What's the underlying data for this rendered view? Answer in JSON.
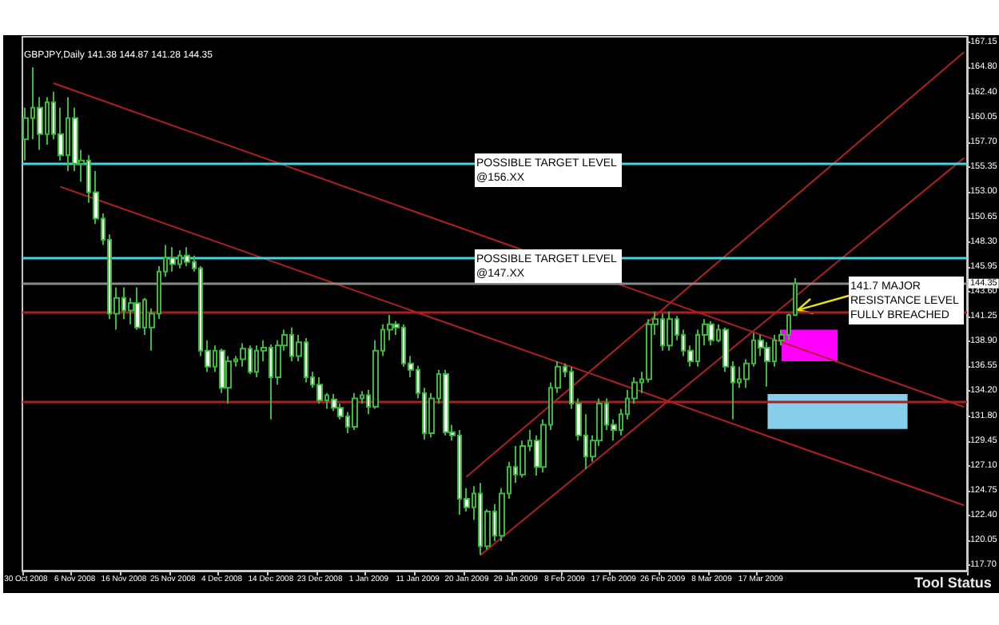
{
  "chart_data": {
    "type": "candlestick",
    "title": "GBPJPY,Daily 141.38 144.87 141.28 144.35",
    "color": "#3cb83c",
    "categories": [
      "30 Oct 2008",
      null,
      null,
      null,
      null,
      null,
      null,
      "6 Nov 2008",
      null,
      null,
      null,
      null,
      null,
      null,
      "16 Nov 2008",
      null,
      null,
      null,
      null,
      null,
      null,
      "25 Nov 2008",
      null,
      null,
      null,
      null,
      null,
      null,
      "4 Dec 2008",
      null,
      null,
      null,
      null,
      null,
      null,
      "14 Dec 2008",
      null,
      null,
      null,
      null,
      null,
      null,
      "23 Dec 2008",
      null,
      null,
      null,
      null,
      null,
      null,
      "1 Jan 2009",
      null,
      null,
      null,
      null,
      null,
      null,
      "11 Jan 2009",
      null,
      null,
      null,
      null,
      null,
      null,
      "20 Jan 2009",
      null,
      null,
      null,
      null,
      null,
      null,
      "29 Jan 2009",
      null,
      null,
      null,
      null,
      null,
      null,
      "8 Feb 2009",
      null,
      null,
      null,
      null,
      null,
      null,
      "17 Feb 2009",
      null,
      null,
      null,
      null,
      null,
      null,
      "26 Feb 2009",
      null,
      null,
      null,
      null,
      null,
      null,
      "8 Mar 2009",
      null,
      null,
      null,
      null,
      null,
      null,
      "17 Mar 2009",
      null,
      null,
      null,
      null,
      null,
      null,
      null,
      null,
      null,
      null,
      null,
      null,
      null,
      null,
      null,
      null,
      null,
      null,
      null,
      null,
      null,
      null,
      null,
      null,
      null,
      null,
      null,
      null,
      null
    ],
    "ohlc": [
      [
        158,
        161,
        156,
        160
      ],
      [
        160,
        164.8,
        158,
        161
      ],
      [
        161,
        162,
        157,
        158.5
      ],
      [
        158.5,
        162,
        157.5,
        161.5
      ],
      [
        161.5,
        162.5,
        158,
        158.5
      ],
      [
        158.5,
        161,
        156,
        156.5
      ],
      [
        156.5,
        162,
        155,
        160
      ],
      [
        160,
        161,
        155,
        155.7
      ],
      [
        155.7,
        157,
        154,
        156
      ],
      [
        156,
        156.5,
        152,
        153
      ],
      [
        153,
        155,
        150,
        150.5
      ],
      [
        150.5,
        151,
        148,
        148.5
      ],
      [
        148.5,
        149,
        141,
        141.5
      ],
      [
        141.5,
        144,
        140,
        143
      ],
      [
        143,
        144,
        141,
        141.8
      ],
      [
        141.8,
        143,
        140.5,
        142.5
      ],
      [
        142.5,
        144,
        140,
        140.2
      ],
      [
        140.2,
        143,
        139.5,
        142.8
      ],
      [
        140.2,
        142,
        138,
        141.5
      ],
      [
        141.5,
        146,
        141,
        145.5
      ],
      [
        145.5,
        148,
        145,
        146.8
      ],
      [
        146.8,
        147.8,
        145.5,
        146.2
      ],
      [
        146.2,
        147.5,
        145.8,
        147
      ],
      [
        147,
        147.8,
        146,
        146.4
      ],
      [
        146.4,
        147,
        145.5,
        145.8
      ],
      [
        145.8,
        146,
        137.5,
        138
      ],
      [
        138,
        139,
        136,
        136.5
      ],
      [
        136.5,
        138.5,
        136,
        138
      ],
      [
        138,
        138.2,
        134,
        134.5
      ],
      [
        134.5,
        137.5,
        133,
        137
      ],
      [
        137,
        137.5,
        136.5,
        137.2
      ],
      [
        137.2,
        138.7,
        136.5,
        138.2
      ],
      [
        138.2,
        138.5,
        135.8,
        136
      ],
      [
        136,
        138.5,
        135.5,
        138
      ],
      [
        138,
        139,
        137,
        138.3
      ],
      [
        138.3,
        138.6,
        131.5,
        135.5
      ],
      [
        135.5,
        139,
        134.8,
        138.5
      ],
      [
        138.5,
        140,
        138,
        139.5
      ],
      [
        139.5,
        140.2,
        137,
        137.5
      ],
      [
        137.5,
        139.5,
        137,
        138.8
      ],
      [
        138.8,
        139.2,
        135,
        135.5
      ],
      [
        135.5,
        136,
        134.5,
        134.8
      ],
      [
        134.8,
        135.5,
        133,
        133.3
      ],
      [
        133.3,
        134,
        132.5,
        133.8
      ],
      [
        133.4,
        133.9,
        132.3,
        132.6
      ],
      [
        132.6,
        133,
        131.5,
        131.8
      ],
      [
        131.8,
        132.2,
        130.2,
        130.8
      ],
      [
        130.8,
        134,
        130.5,
        133.5
      ],
      [
        133.5,
        134.2,
        133,
        133.8
      ],
      [
        133.8,
        134.3,
        132,
        132.7
      ],
      [
        132.7,
        139,
        132.5,
        138
      ],
      [
        138,
        140.5,
        137.5,
        140
      ],
      [
        140,
        141.4,
        139,
        140.5
      ],
      [
        140.5,
        140.8,
        139.5,
        140.2
      ],
      [
        140.2,
        140.5,
        136.5,
        136.8
      ],
      [
        136.8,
        137.5,
        135.5,
        136.2
      ],
      [
        136.2,
        136.6,
        133.5,
        134
      ],
      [
        134,
        134.5,
        129.6,
        130.2
      ],
      [
        130.2,
        134,
        129.8,
        133.5
      ],
      [
        133.5,
        136.2,
        133,
        135.8
      ],
      [
        135.8,
        136.2,
        130,
        130.3
      ],
      [
        130.3,
        131,
        129.5,
        130
      ],
      [
        130,
        130.5,
        122.5,
        124
      ],
      [
        124,
        125,
        122.8,
        123.2
      ],
      [
        123.2,
        125.2,
        122,
        124.5
      ],
      [
        124.5,
        125.5,
        118.7,
        119.5
      ],
      [
        119.5,
        123,
        119.2,
        122.8
      ],
      [
        122.8,
        123.5,
        120,
        120.5
      ],
      [
        120.5,
        125,
        120,
        124.5
      ],
      [
        124.5,
        127.5,
        124,
        127
      ],
      [
        127,
        129,
        125.5,
        126.3
      ],
      [
        126.3,
        129.5,
        126,
        129
      ],
      [
        129,
        130.5,
        128.5,
        129.5
      ],
      [
        129.5,
        130,
        126.2,
        127
      ],
      [
        127,
        131.5,
        126.5,
        131
      ],
      [
        131,
        135,
        130.5,
        134.5
      ],
      [
        134.5,
        137,
        134,
        136.5
      ],
      [
        136.5,
        136.8,
        135.5,
        136
      ],
      [
        136,
        136.5,
        132.5,
        133
      ],
      [
        133,
        133.5,
        129.5,
        130
      ],
      [
        130,
        132,
        126.8,
        128
      ],
      [
        128,
        130,
        127.5,
        129.5
      ],
      [
        129.5,
        133.5,
        129,
        133
      ],
      [
        133,
        133.5,
        130.5,
        131
      ],
      [
        131,
        131.5,
        129.5,
        130.5
      ],
      [
        130.5,
        132.5,
        130,
        132
      ],
      [
        132,
        134.3,
        131.5,
        133.5
      ],
      [
        133.5,
        135.5,
        133,
        135
      ],
      [
        135,
        136,
        134,
        135.3
      ],
      [
        135.3,
        141,
        135,
        140.5
      ],
      [
        140.5,
        141.7,
        139.5,
        141
      ],
      [
        141,
        141.5,
        138,
        138.5
      ],
      [
        138.5,
        141.7,
        138,
        141
      ],
      [
        141,
        141.3,
        139,
        139.5
      ],
      [
        139.5,
        140,
        137.5,
        138
      ],
      [
        138,
        138.5,
        136.5,
        137
      ],
      [
        137,
        140,
        136.5,
        139.5
      ],
      [
        139.5,
        141,
        138.5,
        140.5
      ],
      [
        140.5,
        140.8,
        138.5,
        139
      ],
      [
        139,
        140.5,
        138.8,
        140
      ],
      [
        140,
        140.2,
        136,
        136.5
      ],
      [
        136.5,
        137,
        131.5,
        135
      ],
      [
        135,
        136.5,
        134.5,
        135.3
      ],
      [
        135.3,
        137.2,
        134.5,
        136.8
      ],
      [
        136.8,
        139.7,
        136.5,
        139
      ],
      [
        139,
        139.5,
        137.5,
        138.3
      ],
      [
        138.3,
        138.8,
        134.6,
        137
      ],
      [
        137,
        139.5,
        136.5,
        139
      ],
      [
        139,
        140,
        138.5,
        139.5
      ],
      [
        139.5,
        141.5,
        139,
        141.38
      ],
      [
        141.38,
        144.87,
        141.28,
        144.35
      ],
      null,
      null,
      null,
      null,
      null,
      null,
      null,
      null,
      null,
      null,
      null,
      null,
      null,
      null,
      null,
      null,
      null,
      null,
      null,
      null,
      null,
      null,
      null,
      null
    ],
    "series": [
      {
        "type": "line",
        "color": "#b02020",
        "values": [
          null,
          null,
          null,
          null,
          163.3,
          null,
          null,
          null,
          null,
          null,
          null,
          null,
          null,
          null,
          null,
          null,
          null,
          null,
          null,
          null,
          null,
          null,
          null,
          null,
          null,
          null,
          null,
          null,
          null,
          null,
          null,
          null,
          null,
          null,
          null,
          null,
          null,
          null,
          null,
          null,
          null,
          null,
          null,
          null,
          null,
          null,
          null,
          null,
          null,
          null,
          null,
          null,
          null,
          null,
          null,
          null,
          null,
          null,
          null,
          null,
          null,
          null,
          null,
          null,
          null,
          null,
          null,
          null,
          null,
          null,
          null,
          null,
          null,
          null,
          null,
          null,
          null,
          null,
          null,
          null,
          null,
          null,
          null,
          null,
          null,
          null,
          null,
          null,
          null,
          null,
          null,
          null,
          null,
          null,
          null,
          null,
          null,
          null,
          null,
          null,
          null,
          null,
          null,
          null,
          null,
          null,
          null,
          null,
          null,
          null,
          null,
          null,
          null,
          null,
          null,
          null,
          null,
          null,
          null,
          null,
          null,
          null,
          null,
          null,
          null,
          null,
          null,
          null,
          null,
          null,
          null,
          null,
          null,
          null,
          132.7
        ]
      },
      {
        "type": "line",
        "color": "#b02020",
        "values": [
          null,
          null,
          null,
          null,
          null,
          153.5,
          null,
          null,
          null,
          null,
          null,
          null,
          null,
          null,
          null,
          null,
          null,
          null,
          null,
          null,
          null,
          null,
          null,
          null,
          null,
          null,
          null,
          null,
          null,
          null,
          null,
          null,
          null,
          null,
          null,
          null,
          null,
          null,
          null,
          null,
          null,
          null,
          null,
          null,
          null,
          null,
          null,
          null,
          null,
          null,
          null,
          null,
          null,
          null,
          null,
          null,
          null,
          null,
          null,
          null,
          null,
          null,
          null,
          null,
          null,
          null,
          null,
          null,
          null,
          null,
          null,
          null,
          null,
          null,
          null,
          null,
          null,
          null,
          null,
          null,
          null,
          null,
          null,
          null,
          null,
          null,
          null,
          null,
          null,
          null,
          null,
          null,
          null,
          null,
          null,
          null,
          null,
          null,
          null,
          null,
          null,
          null,
          null,
          null,
          null,
          null,
          null,
          null,
          null,
          null,
          null,
          null,
          null,
          null,
          null,
          null,
          null,
          null,
          null,
          null,
          null,
          null,
          null,
          null,
          null,
          null,
          null,
          null,
          null,
          null,
          null,
          null,
          null,
          null,
          123.4
        ]
      },
      {
        "type": "line",
        "color": "#b02020",
        "values": [
          null,
          null,
          null,
          null,
          null,
          null,
          null,
          null,
          null,
          null,
          null,
          null,
          null,
          null,
          null,
          null,
          null,
          null,
          null,
          null,
          null,
          null,
          null,
          null,
          null,
          null,
          null,
          null,
          null,
          null,
          null,
          null,
          null,
          null,
          null,
          null,
          null,
          null,
          null,
          null,
          null,
          null,
          null,
          null,
          null,
          null,
          null,
          null,
          null,
          null,
          null,
          null,
          null,
          null,
          null,
          null,
          null,
          null,
          null,
          null,
          null,
          null,
          null,
          null,
          null,
          118.7,
          null,
          null,
          null,
          null,
          null,
          null,
          null,
          null,
          null,
          null,
          null,
          null,
          null,
          null,
          null,
          null,
          null,
          null,
          null,
          null,
          null,
          null,
          null,
          null,
          null,
          null,
          null,
          null,
          null,
          null,
          null,
          null,
          null,
          null,
          null,
          null,
          null,
          null,
          null,
          null,
          null,
          null,
          null,
          null,
          null,
          null,
          null,
          null,
          null,
          null,
          null,
          null,
          null,
          null,
          null,
          null,
          null,
          null,
          null,
          null,
          null,
          null,
          null,
          null,
          null,
          null,
          null,
          null,
          156.2
        ]
      },
      {
        "type": "line",
        "color": "#b02020",
        "values": [
          null,
          null,
          null,
          null,
          null,
          null,
          null,
          null,
          null,
          null,
          null,
          null,
          null,
          null,
          null,
          null,
          null,
          null,
          null,
          null,
          null,
          null,
          null,
          null,
          null,
          null,
          null,
          null,
          null,
          null,
          null,
          null,
          null,
          null,
          null,
          null,
          null,
          null,
          null,
          null,
          null,
          null,
          null,
          null,
          null,
          null,
          null,
          null,
          null,
          null,
          null,
          null,
          null,
          null,
          null,
          null,
          null,
          null,
          null,
          null,
          null,
          null,
          null,
          126.1,
          null,
          null,
          null,
          null,
          null,
          null,
          null,
          null,
          null,
          null,
          null,
          null,
          null,
          null,
          null,
          null,
          null,
          null,
          null,
          null,
          null,
          null,
          null,
          null,
          null,
          null,
          null,
          null,
          null,
          null,
          null,
          null,
          null,
          null,
          null,
          null,
          null,
          null,
          null,
          null,
          null,
          null,
          null,
          null,
          null,
          null,
          null,
          null,
          null,
          null,
          null,
          null,
          null,
          null,
          null,
          null,
          null,
          null,
          null,
          null,
          null,
          null,
          null,
          null,
          null,
          null,
          null,
          null,
          null,
          null,
          166.2
        ]
      }
    ],
    "ylim": [
      117.2,
      167.7
    ],
    "yticks": [
      {
        "value": 117.7,
        "label": "117.70"
      },
      120.05,
      {
        "value": 122.4,
        "label": "122.40"
      },
      124.75,
      {
        "value": 127.1,
        "label": "127.10"
      },
      129.45,
      {
        "value": 131.8,
        "label": "131.80"
      },
      {
        "value": 134.2,
        "label": "134.20"
      },
      {
        "value": 136.55,
        "label": "136.55"
      },
      {
        "value": 138.9,
        "label": "138.90"
      },
      141.25,
      {
        "value": 143.6,
        "label": "143.60"
      },
      145.95,
      {
        "value": 148.3,
        "label": "148.30"
      },
      150.65,
      {
        "value": 153,
        "label": "153.00"
      },
      155.35,
      {
        "value": 157.7,
        "label": "157.70"
      },
      160.05,
      {
        "value": 162.4,
        "label": "162.40"
      },
      {
        "value": 164.8,
        "label": "164.80"
      },
      167.15
    ],
    "ref_lines": [
      {
        "axis": "y",
        "value": 155.7,
        "color": "#40d8e0"
      },
      {
        "axis": "y",
        "value": 146.8,
        "color": "#40d8e0"
      },
      {
        "axis": "y",
        "value": 144.35,
        "color": "#8a8a8a",
        "label": "144.35"
      },
      {
        "axis": "y",
        "value": 141.7,
        "color": "#a82020"
      },
      {
        "axis": "y",
        "value": 133.2,
        "color": "#a82020"
      }
    ],
    "bands": [
      {
        "axis": "y",
        "from": 137,
        "to": 140,
        "color": "#ff00ff"
      },
      {
        "axis": "y",
        "from": 130.6,
        "to": 133.9,
        "color": "#87ceeb"
      }
    ],
    "annotations": [
      "POSSIBLE TARGET LEVEL\n@156.XX",
      "POSSIBLE TARGET LEVEL\n@147.XX",
      {
        "text": "141.7 MAJOR\nRESISTANCE LEVEL\nFULLY BREACHED",
        "y": 141.7
      },
      "Tool Status"
    ]
  }
}
